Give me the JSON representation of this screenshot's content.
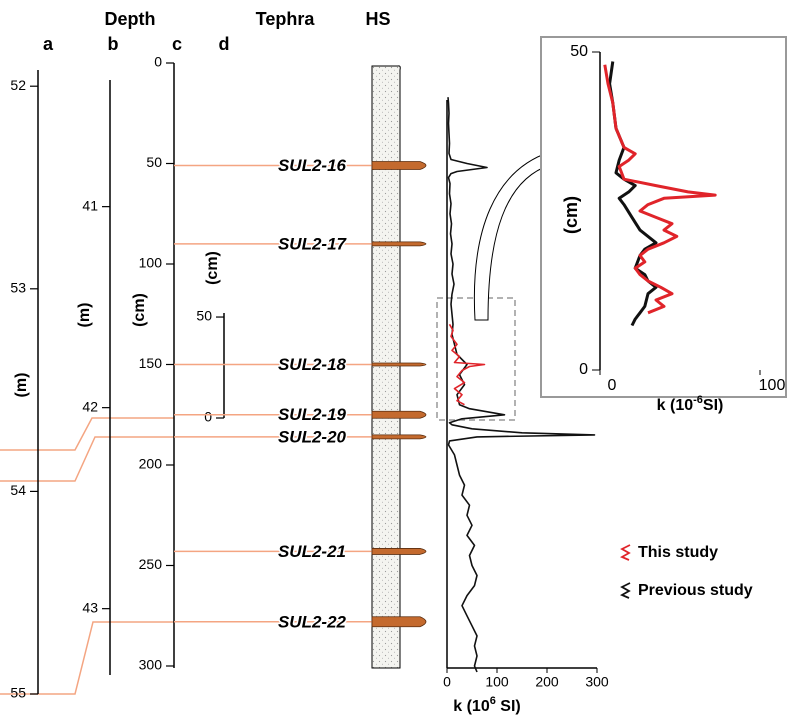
{
  "header": {
    "depth": "Depth",
    "tephra": "Tephra",
    "hs": "HS"
  },
  "depth_scales": [
    {
      "label": "a",
      "unit": "(m)",
      "ylim": [
        51.92,
        55
      ],
      "yticks": [
        52,
        53,
        54,
        55
      ]
    },
    {
      "label": "b",
      "unit": "(m)",
      "ylim": [
        40.37,
        43.33
      ],
      "yticks": [
        41,
        42,
        43
      ]
    },
    {
      "label": "c",
      "unit": "(cm)",
      "ylim": [
        0,
        301
      ],
      "yticks": [
        0,
        50,
        100,
        150,
        200,
        250,
        300
      ]
    },
    {
      "label": "d",
      "unit": "(cm)",
      "ylim": [
        0,
        52
      ],
      "yticks": [
        0,
        50
      ]
    }
  ],
  "tephra": [
    {
      "name": "SUL2-16",
      "depth": 51
    },
    {
      "name": "SUL2-17",
      "depth": 90
    },
    {
      "name": "SUL2-18",
      "depth": 150
    },
    {
      "name": "SUL2-19",
      "depth": 175
    },
    {
      "name": "SUL2-20",
      "depth": 186
    },
    {
      "name": "SUL2-21",
      "depth": 243
    },
    {
      "name": "SUL2-22",
      "depth": 278
    }
  ],
  "chart_data": [
    {
      "type": "line",
      "xlabel": {
        "text": "k (10",
        "sup": "6",
        "after": " SI)"
      },
      "xlim": [
        0,
        300
      ],
      "xticks": [
        0,
        100,
        200,
        300
      ],
      "ylim": [
        0,
        300
      ],
      "series": [
        {
          "name": "Previous study",
          "color": "#111111",
          "depth": [
            17,
            20,
            25,
            30,
            35,
            40,
            45,
            48,
            50,
            52,
            54,
            55,
            57,
            60,
            65,
            70,
            75,
            80,
            85,
            90,
            95,
            100,
            105,
            110,
            115,
            120,
            125,
            130,
            135,
            140,
            145,
            150,
            155,
            160,
            165,
            170,
            172,
            175,
            177,
            179,
            180,
            182,
            184,
            185,
            186,
            188,
            190,
            195,
            200,
            205,
            210,
            215,
            220,
            225,
            230,
            235,
            240,
            245,
            250,
            255,
            260,
            265,
            270,
            275,
            280,
            285,
            290,
            295,
            300,
            303
          ],
          "values": [
            2,
            3,
            4,
            3,
            4,
            5,
            4,
            8,
            40,
            80,
            20,
            8,
            3,
            6,
            5,
            8,
            6,
            9,
            7,
            10,
            8,
            12,
            10,
            14,
            10,
            8,
            10,
            12,
            10,
            15,
            20,
            40,
            25,
            35,
            20,
            25,
            45,
            115,
            30,
            5,
            10,
            50,
            150,
            295,
            60,
            5,
            3,
            15,
            20,
            25,
            35,
            30,
            45,
            40,
            50,
            40,
            55,
            45,
            50,
            60,
            55,
            40,
            30,
            40,
            50,
            60,
            55,
            60,
            55,
            60
          ]
        },
        {
          "name": "This study",
          "color": "#e0242a",
          "depth": [
            130,
            133,
            136,
            140,
            143,
            146,
            149,
            150,
            151,
            153,
            156,
            159,
            162,
            165,
            168,
            170
          ],
          "values": [
            5,
            12,
            8,
            20,
            10,
            25,
            15,
            75,
            45,
            30,
            20,
            35,
            15,
            30,
            20,
            35
          ]
        }
      ]
    },
    {
      "type": "line",
      "xlabel": {
        "text": "k (10",
        "sup": "-6",
        "after": "SI)"
      },
      "ylabel": "(cm)",
      "xlim": [
        0,
        100
      ],
      "xticks": [
        0,
        100
      ],
      "ylim": [
        0,
        50
      ],
      "yticks": [
        0,
        50
      ],
      "series": [
        {
          "name": "Previous study",
          "color": "#111111",
          "depth": [
            48.5,
            45,
            42,
            38,
            35,
            33,
            31,
            30,
            29,
            28,
            27,
            26,
            24,
            22,
            21,
            20,
            19,
            18,
            16,
            15,
            14,
            13,
            12,
            10,
            9,
            8,
            7
          ],
          "values": [
            8,
            6,
            8,
            10,
            15,
            12,
            10,
            15,
            22,
            18,
            12,
            15,
            20,
            25,
            30,
            35,
            28,
            25,
            22,
            28,
            30,
            35,
            30,
            28,
            25,
            22,
            20
          ]
        },
        {
          "name": "This study",
          "color": "#e0242a",
          "depth": [
            48,
            45,
            42,
            38,
            35,
            34,
            33,
            32,
            30,
            29,
            28,
            27.5,
            27,
            26,
            25,
            24,
            23,
            22,
            21,
            20,
            19,
            18,
            17,
            16,
            15,
            14,
            13,
            12,
            11,
            10,
            9
          ],
          "values": [
            3,
            5,
            8,
            10,
            15,
            22,
            18,
            12,
            15,
            35,
            55,
            72,
            40,
            30,
            25,
            35,
            45,
            40,
            48,
            40,
            30,
            25,
            28,
            22,
            25,
            30,
            38,
            45,
            35,
            40,
            30
          ]
        }
      ]
    }
  ]
}
